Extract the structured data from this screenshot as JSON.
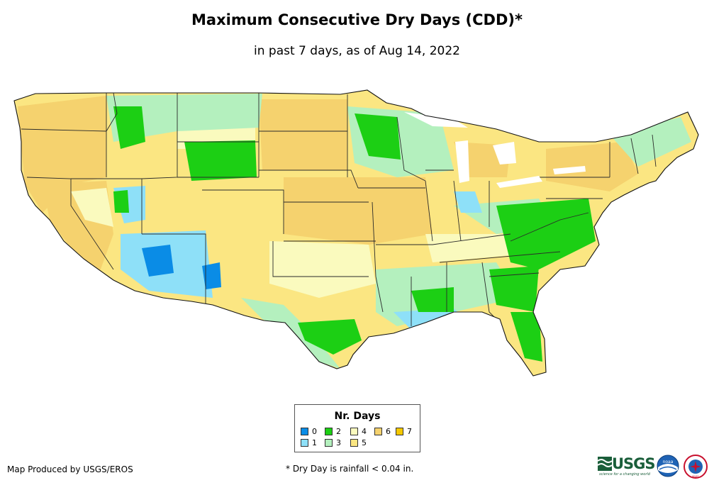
{
  "map": {
    "title": "Maximum Consecutive Dry Days (CDD)*",
    "subtitle": "in past 7 days, as of Aug 14, 2022",
    "region": "Contiguous United States",
    "legend": {
      "title": "Nr. Days",
      "items": [
        {
          "label": "0",
          "color": "#0a8ce6"
        },
        {
          "label": "1",
          "color": "#8ee0f8"
        },
        {
          "label": "2",
          "color": "#1ccf14"
        },
        {
          "label": "3",
          "color": "#b4f0be"
        },
        {
          "label": "4",
          "color": "#fafabe"
        },
        {
          "label": "5",
          "color": "#fbe682"
        },
        {
          "label": "6",
          "color": "#f5d26e"
        },
        {
          "label": "7",
          "color": "#f5c800"
        }
      ]
    },
    "credit": "Map Produced by USGS/EROS",
    "footnote": "* Dry Day is rainfall < 0.04 in.",
    "logos": {
      "usgs": "USGS",
      "usgs_tagline": "science for a changing world",
      "noaa": "noaa",
      "nws": "NWS"
    }
  }
}
